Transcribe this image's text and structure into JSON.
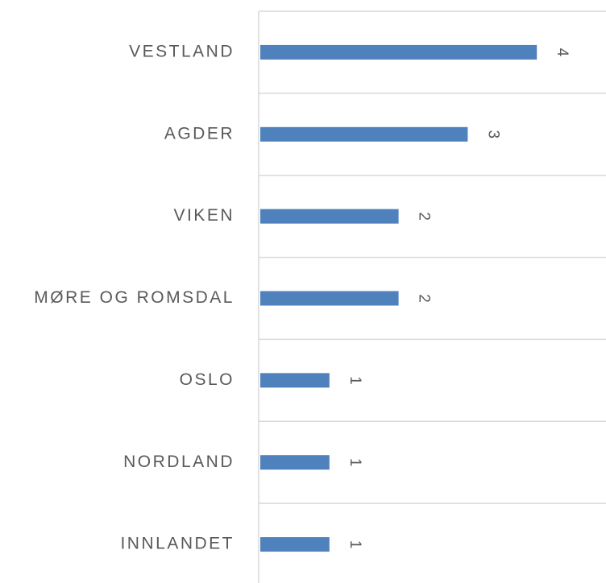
{
  "chart_data": {
    "type": "barh",
    "categories": [
      "VESTLAND",
      "AGDER",
      "VIKEN",
      "MØRE OG ROMSDAL",
      "OSLO",
      "NORDLAND",
      "INNLANDET"
    ],
    "values": [
      4,
      3,
      2,
      2,
      1,
      1,
      1
    ],
    "color": "#4f81bd",
    "xlim": [
      0,
      5
    ]
  }
}
